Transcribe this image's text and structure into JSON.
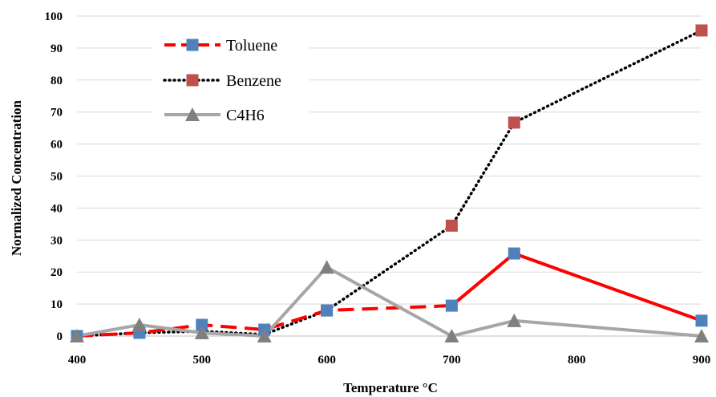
{
  "chart_data": {
    "type": "line",
    "title": "",
    "xlabel": "Temperature °C",
    "ylabel": "Normalized Concentration",
    "x": [
      400,
      450,
      500,
      550,
      600,
      700,
      750,
      900
    ],
    "xlim": [
      400,
      900
    ],
    "ylim": [
      0,
      100
    ],
    "x_ticks": [
      400,
      500,
      600,
      700,
      800,
      900
    ],
    "y_ticks": [
      0,
      10,
      20,
      30,
      40,
      50,
      60,
      70,
      80,
      90,
      100
    ],
    "grid": "horizontal",
    "legend_position": "top-left",
    "series": [
      {
        "name": "Toluene",
        "values": [
          0,
          1,
          3.5,
          2,
          8,
          9.5,
          25.8,
          4.8
        ],
        "line_color": "#ff0000",
        "marker_color": "#4f81bd",
        "marker": "square",
        "line_style": "piecewise: dashed to 700, solid after"
      },
      {
        "name": "Benzene",
        "values": [
          0,
          1,
          1.5,
          0.5,
          8,
          34.5,
          66.7,
          95.5
        ],
        "line_color": "#000000",
        "marker_color": "#c0504d",
        "marker": "square",
        "line_style": "dotted",
        "marker_shown_at": [
          600,
          700,
          750,
          900
        ]
      },
      {
        "name": "C4H6",
        "values": [
          0,
          3.5,
          1,
          0,
          21.5,
          0,
          4.8,
          0
        ],
        "line_color": "#a6a6a6",
        "marker_color": "#808080",
        "marker": "triangle",
        "line_style": "solid"
      }
    ]
  }
}
